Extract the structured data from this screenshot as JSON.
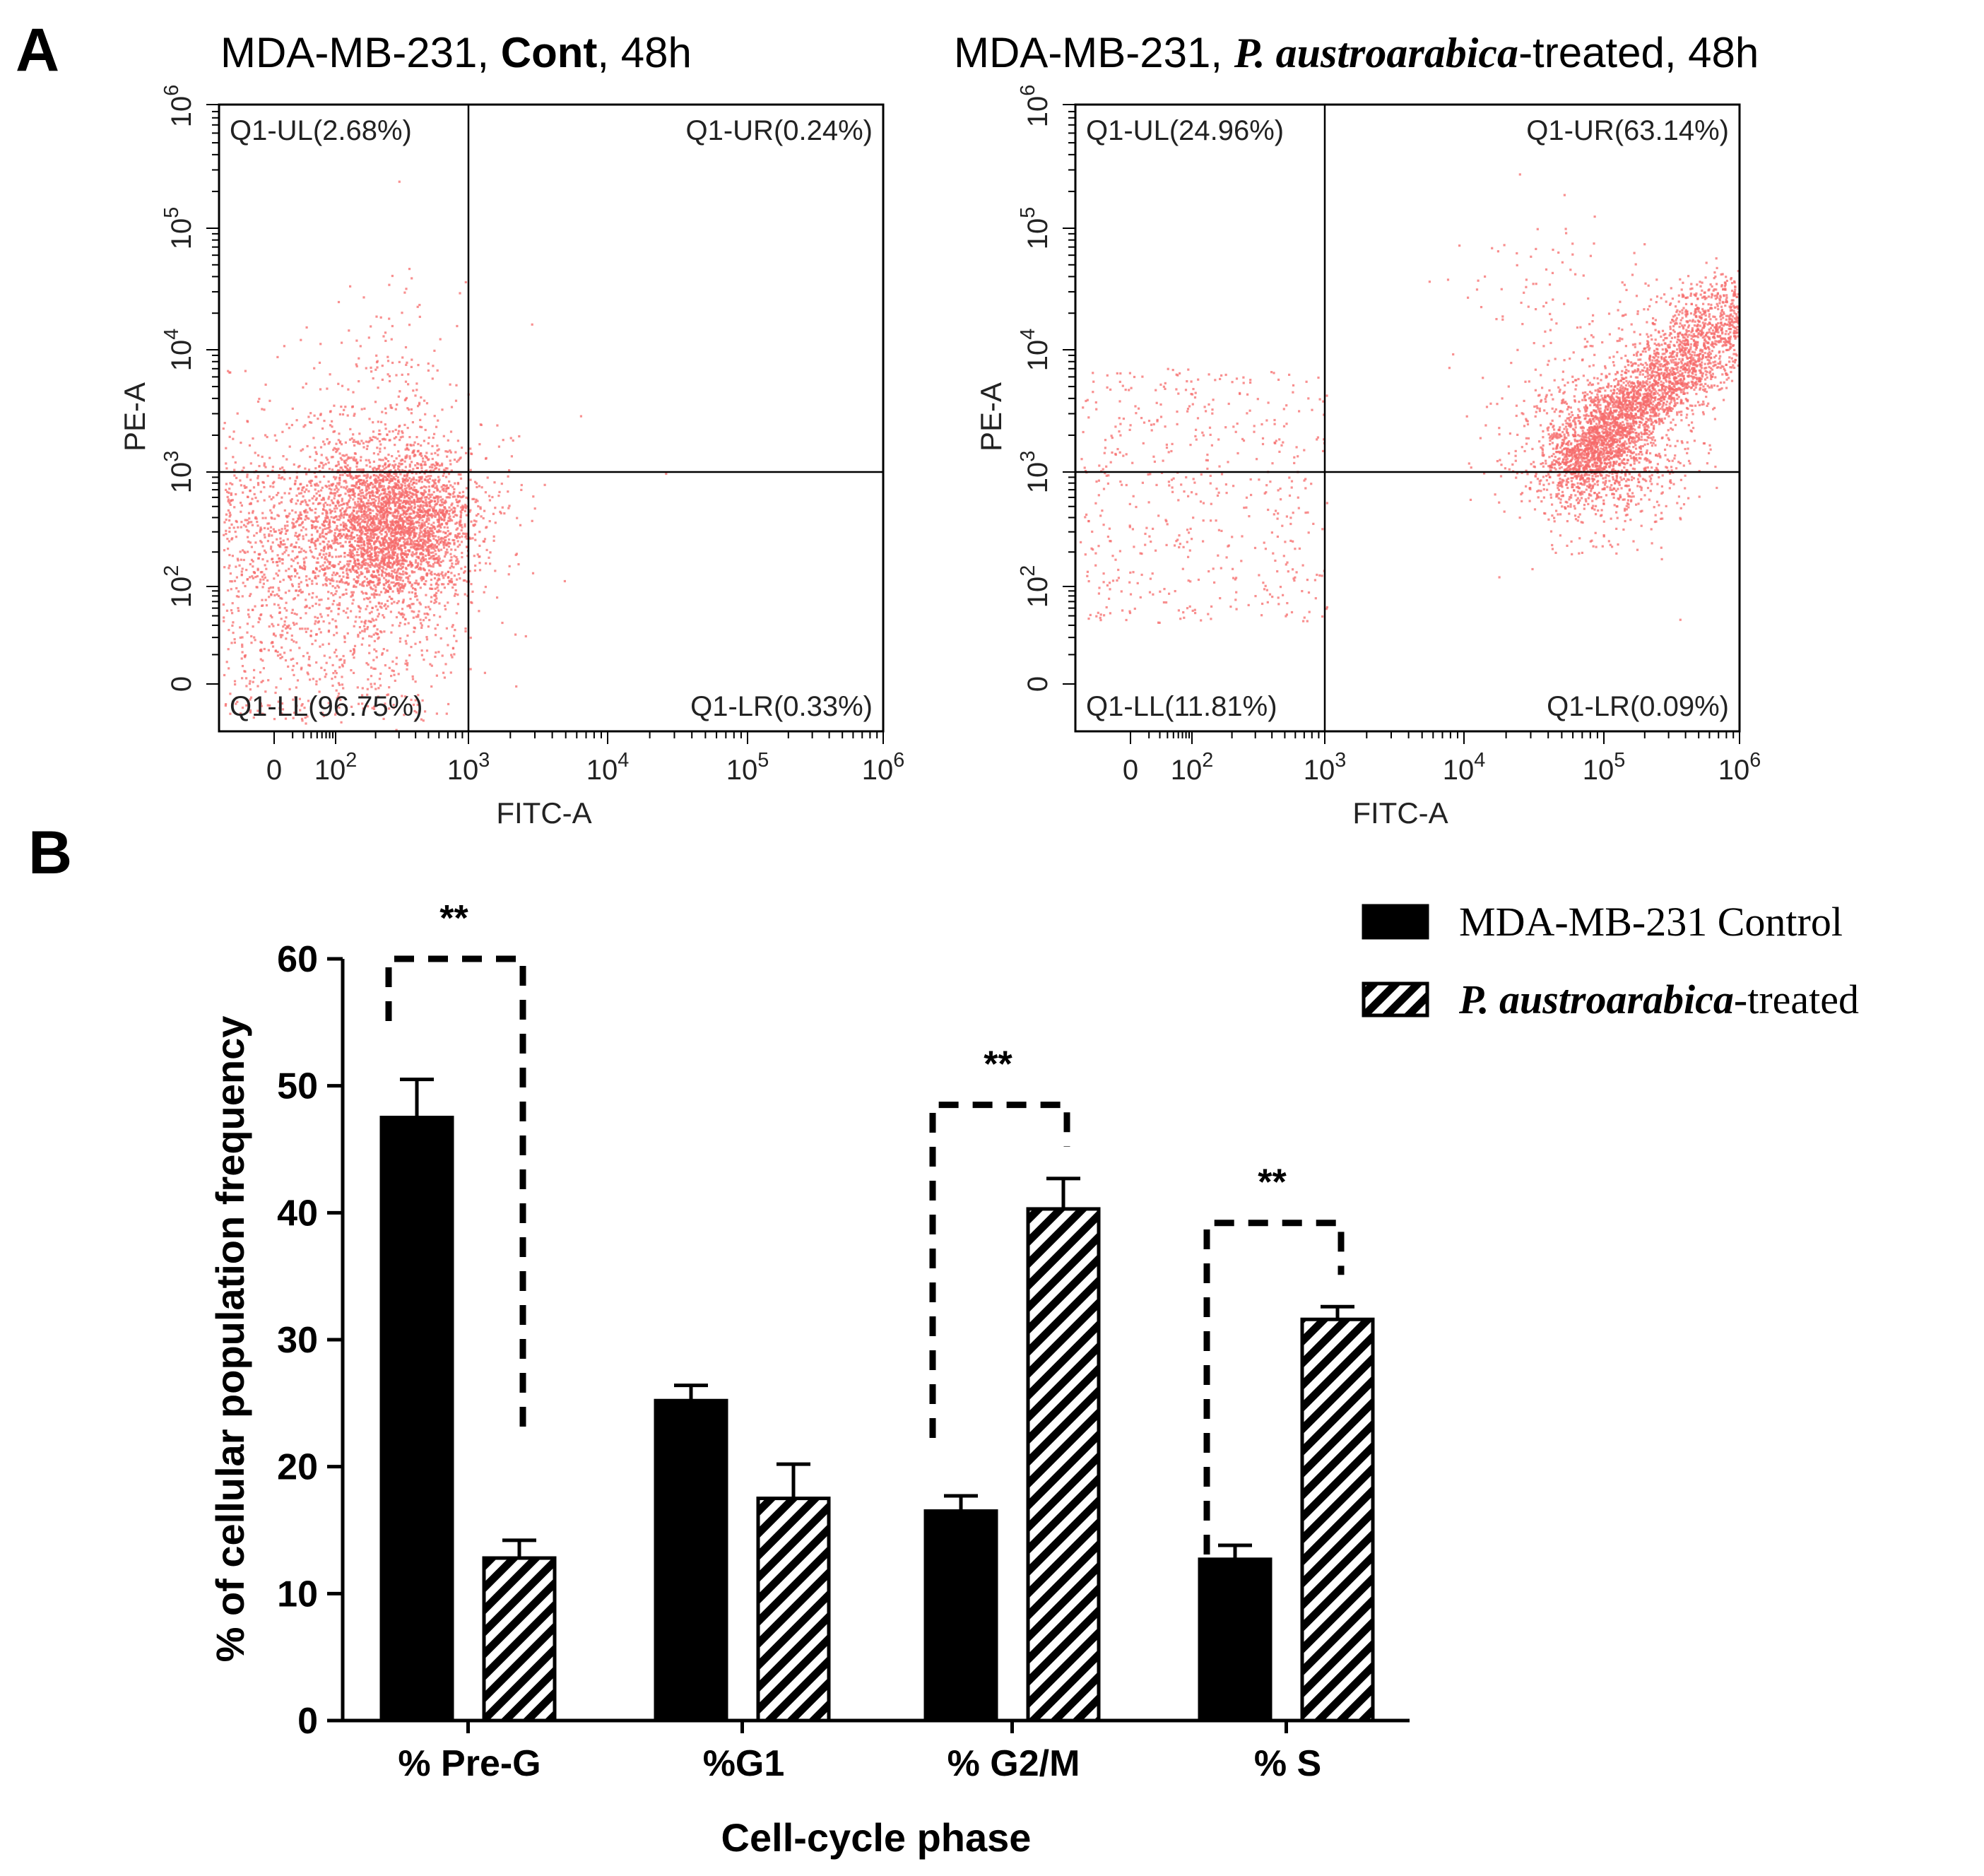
{
  "panel_a": {
    "label": "A",
    "left_title": {
      "prefix": "MDA-MB-231,  ",
      "bold": "Cont",
      "suffix": ", 48h"
    },
    "right_title": {
      "prefix": "MDA-MB-231,  ",
      "italic": "P. austroarabica",
      "suffix": "-treated,  48h"
    }
  },
  "panel_b": {
    "label": "B",
    "significance": "**"
  },
  "chart_data": [
    {
      "type": "scatter",
      "title": "MDA-MB-231, Cont, 48h",
      "xlabel": "FITC-A",
      "ylabel": "PE-A",
      "scale": "logicle",
      "x_ticks": [
        "0",
        "10^2",
        "10^3",
        "10^4",
        "10^5",
        "10^6"
      ],
      "y_ticks": [
        "0",
        "10^2",
        "10^3",
        "10^4",
        "10^5",
        "10^6"
      ],
      "gate": {
        "x": 1000,
        "y": 1000
      },
      "quadrants": {
        "UL": "Q1-UL(2.68%)",
        "UR": "Q1-UR(0.24%)",
        "LL": "Q1-LL(96.75%)",
        "LR": "Q1-LR(0.33%)"
      },
      "point_color": "#f56b6b"
    },
    {
      "type": "scatter",
      "title": "MDA-MB-231, P. austroarabica-treated, 48h",
      "xlabel": "FITC-A",
      "ylabel": "PE-A",
      "scale": "logicle",
      "x_ticks": [
        "0",
        "10^2",
        "10^3",
        "10^4",
        "10^5",
        "10^6"
      ],
      "y_ticks": [
        "0",
        "10^2",
        "10^3",
        "10^4",
        "10^5",
        "10^6"
      ],
      "gate": {
        "x": 1000,
        "y": 1000
      },
      "quadrants": {
        "UL": "Q1-UL(24.96%)",
        "UR": "Q1-UR(63.14%)",
        "LL": "Q1-LL(11.81%)",
        "LR": "Q1-LR(0.09%)"
      },
      "point_color": "#f56b6b"
    },
    {
      "type": "bar",
      "xlabel": "Cell-cycle phase",
      "ylabel": "% of cellular population frequency",
      "categories": [
        "% Pre-G",
        "%G1",
        "% G2/M",
        "% S"
      ],
      "ylim": [
        0,
        60
      ],
      "yticks": [
        0,
        10,
        20,
        30,
        40,
        50,
        60
      ],
      "legend_position": "top-right",
      "series": [
        {
          "name": "MDA-MB-231 Control",
          "fill": "solid",
          "color": "#000000",
          "values": [
            47.5,
            25.2,
            16.5,
            12.7
          ],
          "errors": [
            3.0,
            1.2,
            1.2,
            1.1
          ]
        },
        {
          "name": "P. austroarabica-treated",
          "fill": "hatched",
          "color": "#000000",
          "values": [
            12.8,
            17.5,
            40.3,
            31.6
          ],
          "errors": [
            1.4,
            2.7,
            2.4,
            1.0
          ]
        }
      ],
      "significance_brackets": [
        {
          "category": "% Pre-G",
          "label": "**",
          "height": 60
        },
        {
          "category": "% G2/M",
          "label": "**",
          "height": 48.5
        },
        {
          "category": "% S",
          "label": "**",
          "height": 39.2
        }
      ]
    }
  ]
}
